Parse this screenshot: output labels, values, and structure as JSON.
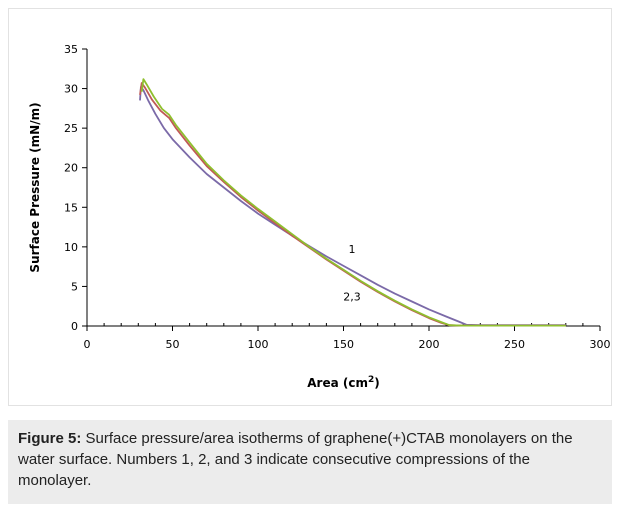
{
  "chart_data": {
    "type": "line",
    "xlabel": "Area (cm",
    "xlabel_sup": "2",
    "xlabel_close": ")",
    "ylabel": "Surface Pressure (mN/m)",
    "xlim": [
      0,
      300
    ],
    "ylim": [
      0,
      35
    ],
    "xticks": [
      0,
      50,
      100,
      150,
      200,
      250,
      300
    ],
    "yticks": [
      0,
      5,
      10,
      15,
      20,
      25,
      30,
      35
    ],
    "grid": false,
    "legend": "none",
    "annotations": [
      {
        "text": "1",
        "x": 155,
        "y": 9.2
      },
      {
        "text": "2,3",
        "x": 155,
        "y": 3.2
      }
    ],
    "series": [
      {
        "color": "#7b6aa8",
        "points": [
          [
            31,
            28.5
          ],
          [
            31.5,
            30.2
          ],
          [
            33,
            29.8
          ],
          [
            36,
            28.4
          ],
          [
            40,
            26.8
          ],
          [
            45,
            25
          ],
          [
            50,
            23.6
          ],
          [
            60,
            21.3
          ],
          [
            70,
            19.2
          ],
          [
            80,
            17.5
          ],
          [
            90,
            15.8
          ],
          [
            100,
            14.2
          ],
          [
            110,
            12.8
          ],
          [
            120,
            11.4
          ],
          [
            130,
            10.1
          ],
          [
            140,
            8.8
          ],
          [
            150,
            7.6
          ],
          [
            160,
            6.4
          ],
          [
            170,
            5.2
          ],
          [
            180,
            4.1
          ],
          [
            190,
            3.1
          ],
          [
            200,
            2.1
          ],
          [
            210,
            1.2
          ],
          [
            218,
            0.5
          ],
          [
            222,
            0.15
          ],
          [
            230,
            0.1
          ],
          [
            250,
            0.1
          ],
          [
            270,
            0.1
          ],
          [
            280,
            0.1
          ]
        ]
      },
      {
        "color": "#c05a56",
        "points": [
          [
            31,
            29.2
          ],
          [
            32,
            30.7
          ],
          [
            34,
            30.1
          ],
          [
            38,
            28.6
          ],
          [
            43,
            27.2
          ],
          [
            48,
            26.3
          ],
          [
            52,
            25
          ],
          [
            60,
            22.8
          ],
          [
            70,
            20.2
          ],
          [
            80,
            18.2
          ],
          [
            90,
            16.3
          ],
          [
            100,
            14.6
          ],
          [
            110,
            13
          ],
          [
            120,
            11.4
          ],
          [
            130,
            9.9
          ],
          [
            140,
            8.4
          ],
          [
            150,
            7
          ],
          [
            160,
            5.6
          ],
          [
            170,
            4.3
          ],
          [
            180,
            3.1
          ],
          [
            190,
            2
          ],
          [
            200,
            1
          ],
          [
            207,
            0.4
          ],
          [
            212,
            0.1
          ],
          [
            220,
            0.05
          ],
          [
            240,
            0.05
          ],
          [
            260,
            0.05
          ],
          [
            280,
            0.05
          ]
        ]
      },
      {
        "color": "#8fbf2e",
        "points": [
          [
            32,
            29.6
          ],
          [
            33,
            31.2
          ],
          [
            35,
            30.5
          ],
          [
            39,
            29
          ],
          [
            44,
            27.4
          ],
          [
            48,
            26.7
          ],
          [
            52,
            25.4
          ],
          [
            60,
            23.2
          ],
          [
            70,
            20.5
          ],
          [
            80,
            18.4
          ],
          [
            90,
            16.5
          ],
          [
            100,
            14.8
          ],
          [
            110,
            13.2
          ],
          [
            120,
            11.6
          ],
          [
            130,
            10
          ],
          [
            140,
            8.5
          ],
          [
            150,
            7.1
          ],
          [
            160,
            5.7
          ],
          [
            170,
            4.4
          ],
          [
            180,
            3.2
          ],
          [
            190,
            2.1
          ],
          [
            200,
            1.1
          ],
          [
            207,
            0.5
          ],
          [
            212,
            0.1
          ],
          [
            220,
            0.05
          ],
          [
            240,
            0.05
          ],
          [
            260,
            0.05
          ],
          [
            280,
            0.05
          ]
        ]
      }
    ]
  },
  "caption": {
    "label": "Figure 5:",
    "text": " Surface pressure/area isotherms of graphene(+)CTAB monolayers on the water surface. Numbers 1, 2, and 3 indicate consecutive compressions of the monolayer."
  }
}
